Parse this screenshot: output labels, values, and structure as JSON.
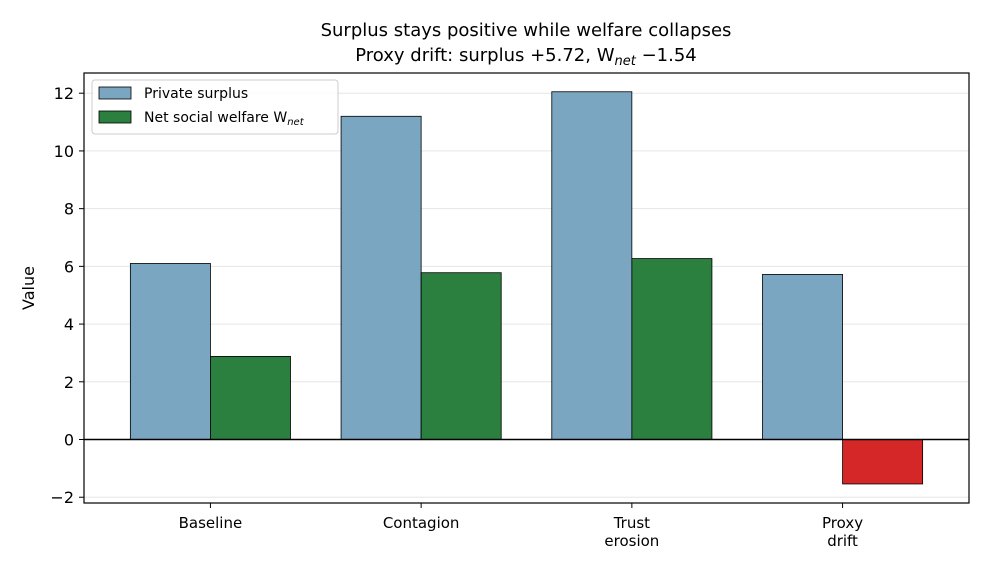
{
  "chart_data": {
    "type": "bar",
    "title": "Surplus stays positive while welfare collapses",
    "subtitle": "Proxy drift: surplus +5.72, W",
    "subtitle_sub": "net",
    "subtitle_tail": " −1.54",
    "xlabel": "",
    "ylabel": "Value",
    "ylim": [
      -2.2,
      12.7
    ],
    "yticks": [
      -2,
      0,
      2,
      4,
      6,
      8,
      10,
      12
    ],
    "ytick_labels": [
      "−2",
      "0",
      "2",
      "4",
      "6",
      "8",
      "10",
      "12"
    ],
    "grid": "horizontal",
    "legend_position": "top-left",
    "categories": [
      [
        "Baseline"
      ],
      [
        "Contagion"
      ],
      [
        "Trust",
        "erosion"
      ],
      [
        "Proxy",
        "drift"
      ]
    ],
    "series": [
      {
        "name": "Private surplus",
        "color": "#7aa6c2",
        "values": [
          6.1,
          11.2,
          12.05,
          5.72
        ]
      },
      {
        "name": "Net social welfare W",
        "name_sub": "net",
        "color": "#2b7f3f",
        "negative_color": "#d62728",
        "values": [
          2.88,
          5.78,
          6.27,
          -1.54
        ]
      }
    ]
  }
}
